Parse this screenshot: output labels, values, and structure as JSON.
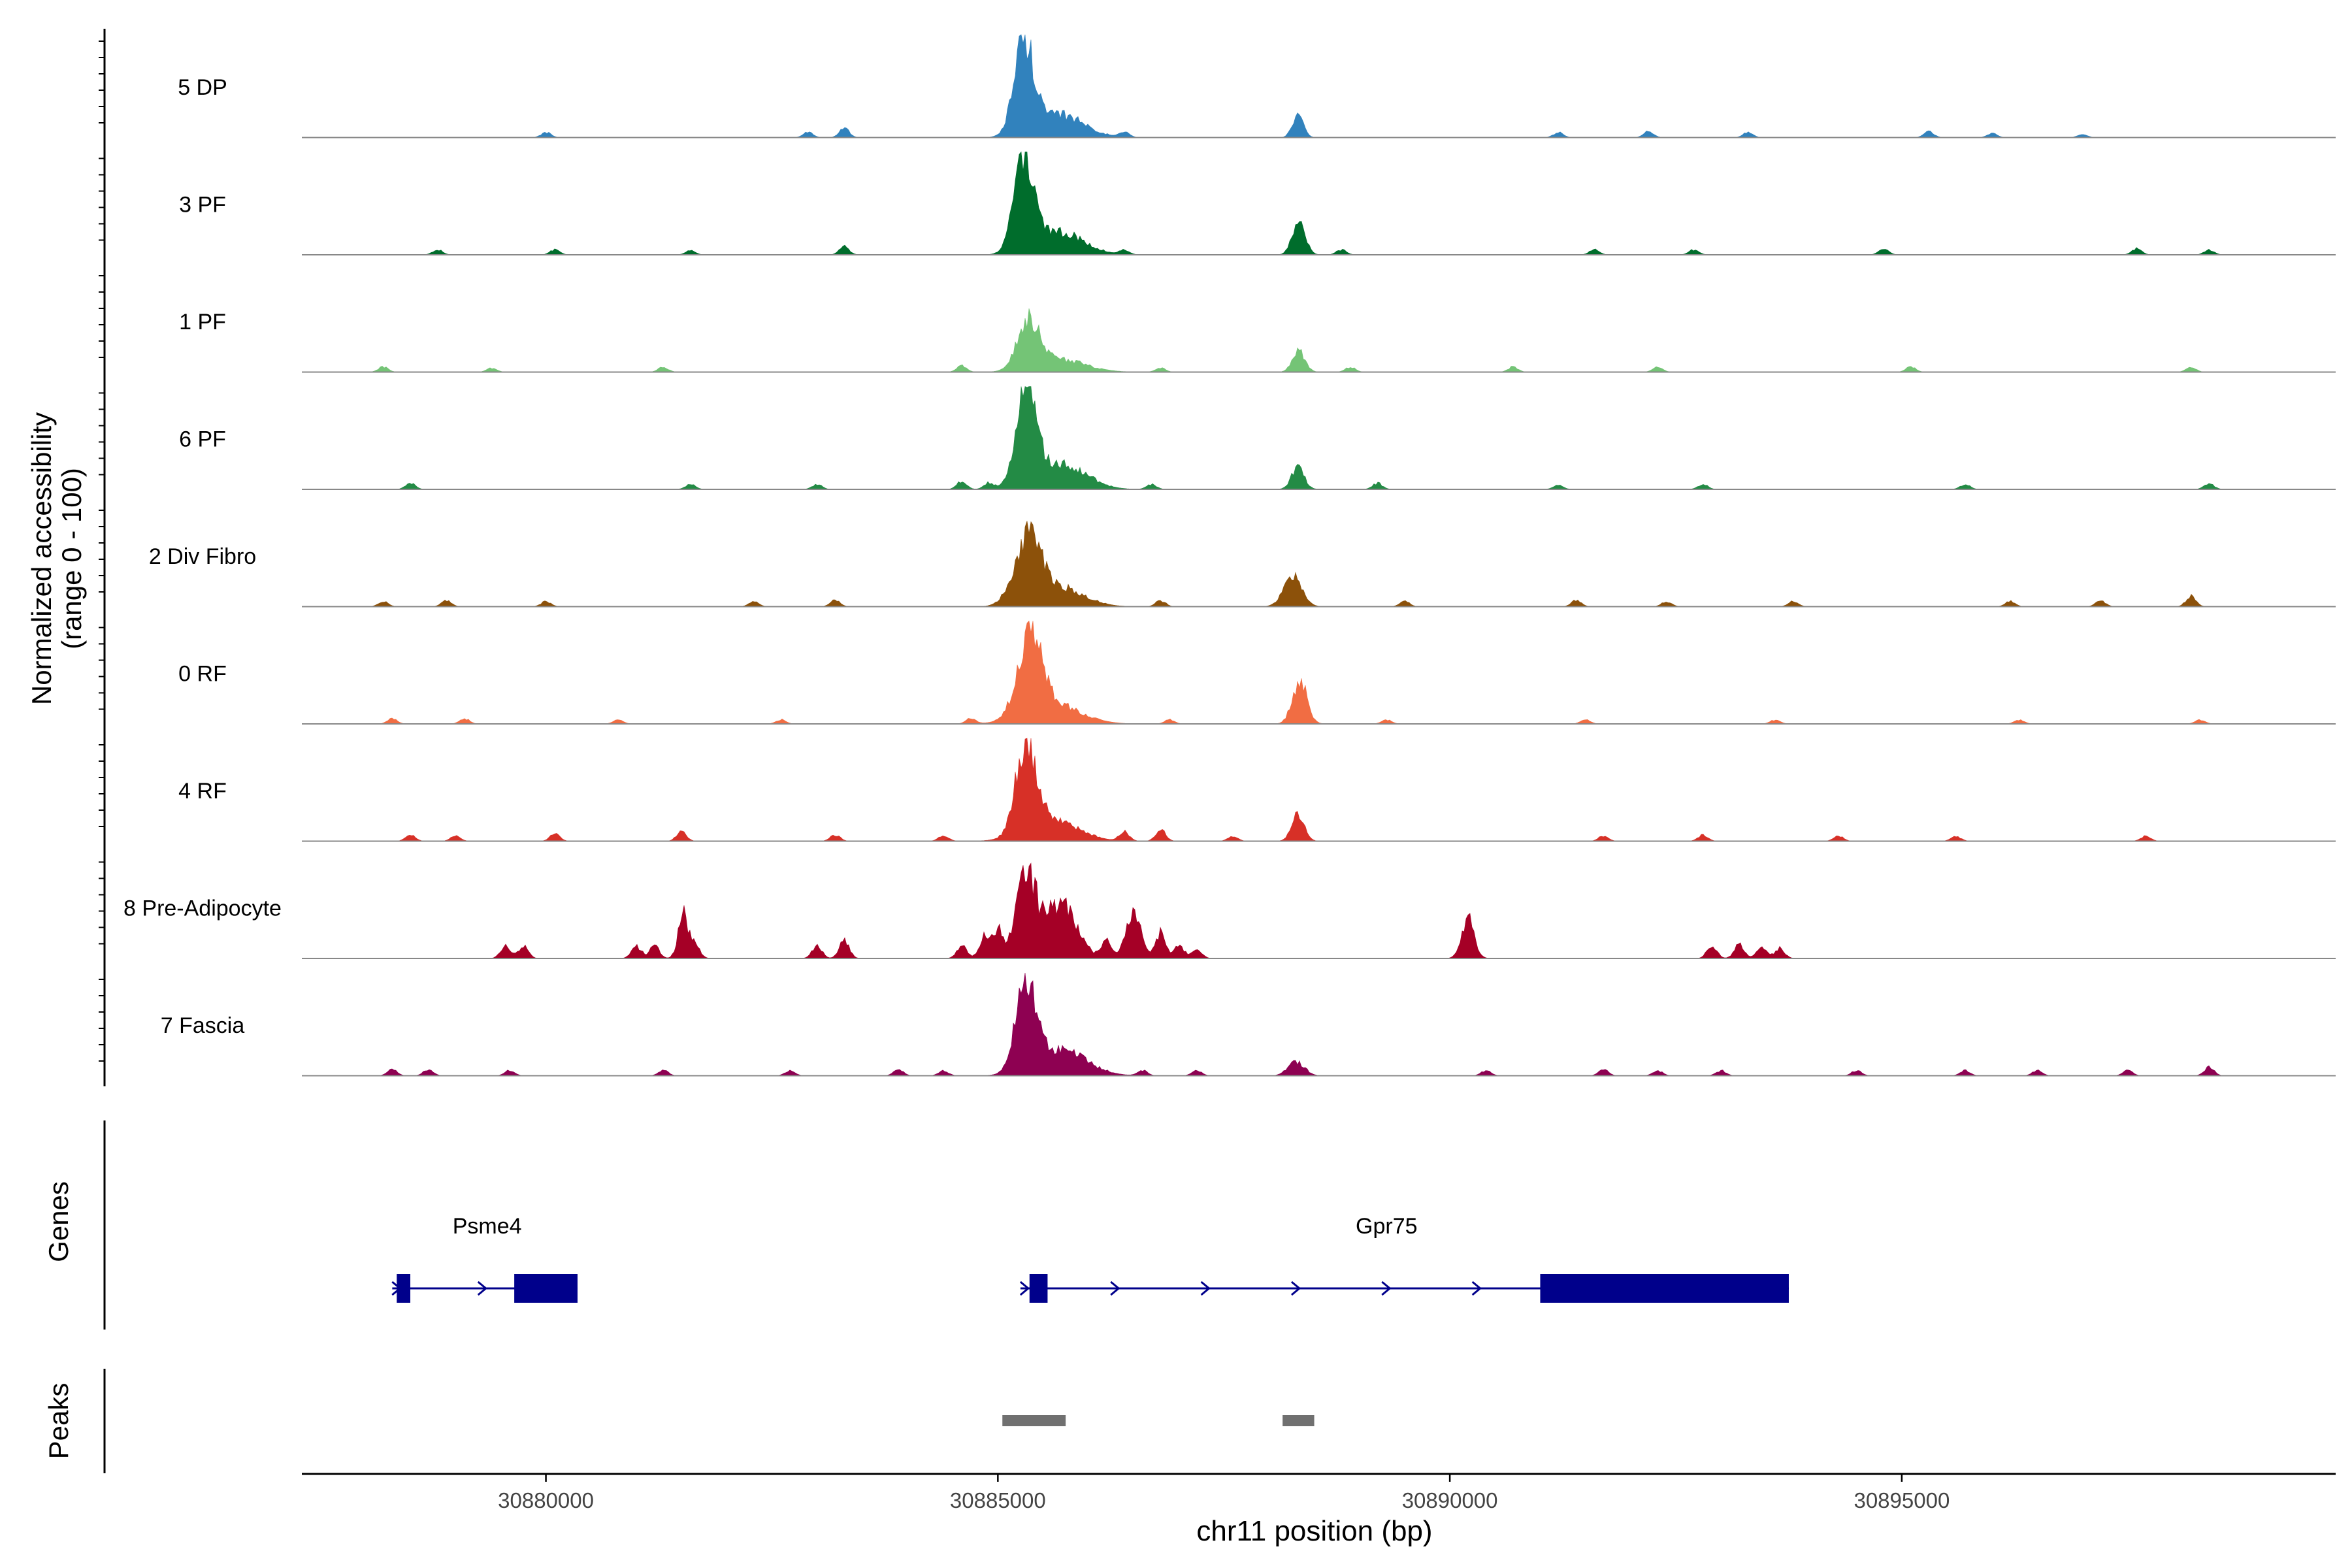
{
  "chart_data": {
    "type": "area",
    "title": "",
    "xlabel": "chr11 position (bp)",
    "ylabel_line1": "Normalized accessibility",
    "ylabel_line2": "(range 0 - 100)",
    "xlim": [
      30877300,
      30899800
    ],
    "ylim": [
      0,
      100
    ],
    "x_ticks": [
      {
        "value": 30880000,
        "label": "30880000"
      },
      {
        "value": 30885000,
        "label": "30885000"
      },
      {
        "value": 30890000,
        "label": "30890000"
      },
      {
        "value": 30895000,
        "label": "30895000"
      }
    ],
    "tracks": [
      {
        "name": "5 DP",
        "color": "#3182BD",
        "peaks": [
          [
            30885290,
            110,
            92
          ],
          [
            30885700,
            260,
            22
          ],
          [
            30888320,
            60,
            22
          ]
        ],
        "bumps": [
          [
            30880000,
            5
          ],
          [
            30882900,
            5
          ],
          [
            30883300,
            9
          ],
          [
            30886400,
            5
          ],
          [
            30891200,
            5
          ],
          [
            30892200,
            6
          ],
          [
            30893300,
            5
          ],
          [
            30895300,
            6
          ],
          [
            30896000,
            4
          ],
          [
            30897000,
            3
          ]
        ]
      },
      {
        "name": "3 PF",
        "color": "#006D2C",
        "peaks": [
          [
            30885290,
            110,
            95
          ],
          [
            30885700,
            260,
            22
          ],
          [
            30888330,
            70,
            35
          ]
        ],
        "bumps": [
          [
            30878800,
            5
          ],
          [
            30880100,
            5
          ],
          [
            30881600,
            4
          ],
          [
            30883300,
            8
          ],
          [
            30886400,
            4
          ],
          [
            30888800,
            5
          ],
          [
            30891600,
            5
          ],
          [
            30892700,
            5
          ],
          [
            30894800,
            6
          ],
          [
            30897600,
            6
          ],
          [
            30898400,
            5
          ]
        ]
      },
      {
        "name": "1 PF",
        "color": "#74C476",
        "peaks": [
          [
            30885340,
            120,
            48
          ],
          [
            30885700,
            280,
            12
          ],
          [
            30888330,
            70,
            20
          ]
        ],
        "bumps": [
          [
            30878200,
            5
          ],
          [
            30879400,
            4
          ],
          [
            30881300,
            5
          ],
          [
            30884600,
            6
          ],
          [
            30886800,
            4
          ],
          [
            30888900,
            5
          ],
          [
            30890700,
            5
          ],
          [
            30892300,
            5
          ],
          [
            30895100,
            5
          ],
          [
            30898200,
            5
          ]
        ]
      },
      {
        "name": "6 PF",
        "color": "#238B45",
        "peaks": [
          [
            30885310,
            110,
            95
          ],
          [
            30885700,
            270,
            25
          ],
          [
            30888320,
            70,
            22
          ]
        ],
        "bumps": [
          [
            30878500,
            6
          ],
          [
            30881600,
            5
          ],
          [
            30883000,
            5
          ],
          [
            30884600,
            8
          ],
          [
            30884900,
            6
          ],
          [
            30886700,
            5
          ],
          [
            30889200,
            6
          ],
          [
            30891200,
            4
          ],
          [
            30892800,
            5
          ],
          [
            30895700,
            5
          ],
          [
            30898400,
            6
          ]
        ]
      },
      {
        "name": "2 Div Fibro",
        "color": "#8C510A",
        "peaks": [
          [
            30885330,
            150,
            62
          ],
          [
            30885700,
            260,
            18
          ],
          [
            30888260,
            100,
            30
          ]
        ],
        "bumps": [
          [
            30878200,
            5
          ],
          [
            30878900,
            6
          ],
          [
            30880000,
            5
          ],
          [
            30882300,
            5
          ],
          [
            30883200,
            6
          ],
          [
            30886800,
            6
          ],
          [
            30889500,
            5
          ],
          [
            30891400,
            6
          ],
          [
            30892400,
            5
          ],
          [
            30893800,
            5
          ],
          [
            30896200,
            5
          ],
          [
            30897200,
            6
          ],
          [
            30898200,
            10
          ]
        ]
      },
      {
        "name": "0 RF",
        "color": "#F16D43",
        "peaks": [
          [
            30885350,
            130,
            75
          ],
          [
            30885600,
            300,
            20
          ],
          [
            30888340,
            80,
            42
          ]
        ],
        "bumps": [
          [
            30878300,
            5
          ],
          [
            30879100,
            5
          ],
          [
            30880800,
            4
          ],
          [
            30882600,
            4
          ],
          [
            30884700,
            5
          ],
          [
            30886900,
            4
          ],
          [
            30889300,
            4
          ],
          [
            30891500,
            4
          ],
          [
            30893600,
            4
          ],
          [
            30896300,
            4
          ],
          [
            30898300,
            4
          ]
        ]
      },
      {
        "name": "4 RF",
        "color": "#D73027",
        "peaks": [
          [
            30885310,
            110,
            85
          ],
          [
            30885600,
            280,
            22
          ],
          [
            30888320,
            70,
            25
          ]
        ],
        "bumps": [
          [
            30878500,
            6
          ],
          [
            30879000,
            5
          ],
          [
            30880100,
            7
          ],
          [
            30881500,
            9
          ],
          [
            30883200,
            6
          ],
          [
            30884400,
            6
          ],
          [
            30886400,
            9
          ],
          [
            30886800,
            12
          ],
          [
            30887600,
            5
          ],
          [
            30891700,
            5
          ],
          [
            30892800,
            6
          ],
          [
            30894300,
            5
          ],
          [
            30895600,
            5
          ],
          [
            30897700,
            5
          ]
        ]
      },
      {
        "name": "8 Pre-Adipocyte",
        "color": "#A50026",
        "peaks": [
          [
            30885300,
            100,
            88
          ],
          [
            30885600,
            160,
            40
          ],
          [
            30885800,
            140,
            28
          ],
          [
            30886500,
            90,
            42
          ],
          [
            30890200,
            70,
            38
          ]
        ],
        "bumps": [
          [
            30879550,
            12
          ],
          [
            30879750,
            12
          ],
          [
            30881000,
            12
          ],
          [
            30881200,
            12
          ],
          [
            30881520,
            42
          ],
          [
            30881650,
            12
          ],
          [
            30883000,
            12
          ],
          [
            30883300,
            18
          ],
          [
            30884600,
            12
          ],
          [
            30884850,
            22
          ],
          [
            30885000,
            28
          ],
          [
            30886200,
            18
          ],
          [
            30886800,
            25
          ],
          [
            30887000,
            14
          ],
          [
            30887200,
            10
          ],
          [
            30892900,
            12
          ],
          [
            30893200,
            14
          ],
          [
            30893450,
            12
          ],
          [
            30893650,
            10
          ]
        ]
      },
      {
        "name": "7 Fascia",
        "color": "#8E0152",
        "peaks": [
          [
            30885310,
            110,
            85
          ],
          [
            30885700,
            280,
            25
          ],
          [
            30888300,
            90,
            14
          ]
        ],
        "bumps": [
          [
            30878300,
            6
          ],
          [
            30878700,
            6
          ],
          [
            30879600,
            5
          ],
          [
            30881300,
            5
          ],
          [
            30882700,
            5
          ],
          [
            30883900,
            6
          ],
          [
            30884400,
            5
          ],
          [
            30886600,
            5
          ],
          [
            30887200,
            5
          ],
          [
            30890400,
            5
          ],
          [
            30891700,
            6
          ],
          [
            30892300,
            5
          ],
          [
            30893000,
            5
          ],
          [
            30894500,
            5
          ],
          [
            30895700,
            5
          ],
          [
            30896500,
            5
          ],
          [
            30897500,
            5
          ],
          [
            30898400,
            8
          ]
        ]
      }
    ],
    "genes_label": "Genes",
    "genes": [
      {
        "name": "Psme4",
        "label_x": 30879350,
        "start": 30878300,
        "end": 30880350,
        "exons": [
          [
            30878350,
            30878500
          ],
          [
            30879650,
            30880350
          ]
        ],
        "arrows": [
          30878350,
          30879300
        ]
      },
      {
        "name": "Gpr75",
        "label_x": 30889300,
        "start": 30885250,
        "end": 30893750,
        "exons": [
          [
            30885350,
            30885550
          ],
          [
            30891000,
            30893750
          ]
        ],
        "arrows": [
          30885300,
          30886300,
          30887300,
          30888300,
          30889300,
          30890300
        ]
      }
    ],
    "peaks_label": "Peaks",
    "peak_regions": [
      [
        30885050,
        30885750
      ],
      [
        30888150,
        30888500
      ]
    ]
  },
  "colors": {
    "gene": "#00008B",
    "peak_region": "#707070",
    "baseline": "#888888"
  }
}
